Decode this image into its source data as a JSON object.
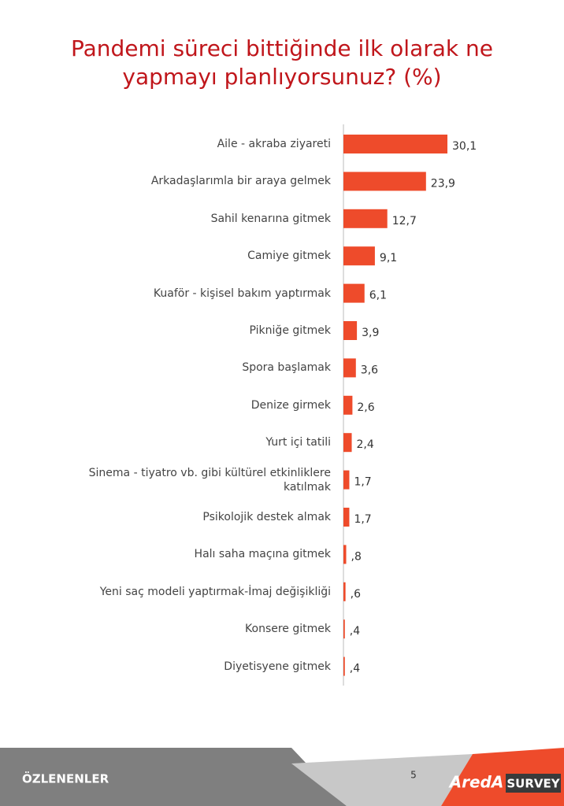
{
  "chart_data": {
    "type": "barh",
    "title": "Pandemi süreci bittiğinde ilk olarak ne yapmayı planlıyorsunuz? (%)",
    "categories": [
      "Aile - akraba ziyareti",
      "Arkadaşlarımla bir araya gelmek",
      "Sahil kenarına gitmek",
      "Camiye gitmek",
      "Kuaför - kişisel bakım yaptırmak",
      "Pikniğe gitmek",
      "Spora başlamak",
      "Denize girmek",
      "Yurt içi tatili",
      "Sinema - tiyatro vb. gibi kültürel etkinliklere katılmak",
      "Psikolojik destek almak",
      "Halı saha maçına gitmek",
      "Yeni saç modeli yaptırmak-İmaj değişikliği",
      "Konsere gitmek",
      "Diyetisyene gitmek"
    ],
    "values": [
      30.1,
      23.9,
      12.7,
      9.1,
      6.1,
      3.9,
      3.6,
      2.6,
      2.4,
      1.7,
      1.7,
      0.8,
      0.6,
      0.4,
      0.4
    ],
    "value_labels": [
      "30,1",
      "23,9",
      "12,7",
      "9,1",
      "6,1",
      "3,9",
      "3,6",
      "2,6",
      "2,4",
      "1,7",
      "1,7",
      ",8",
      ",6",
      ",4",
      ",4"
    ],
    "color": "#ee4b2b"
  },
  "footer": {
    "section": "ÖZLENENLER",
    "page": "5",
    "logo": "AredA",
    "brand": "SURVEY"
  }
}
